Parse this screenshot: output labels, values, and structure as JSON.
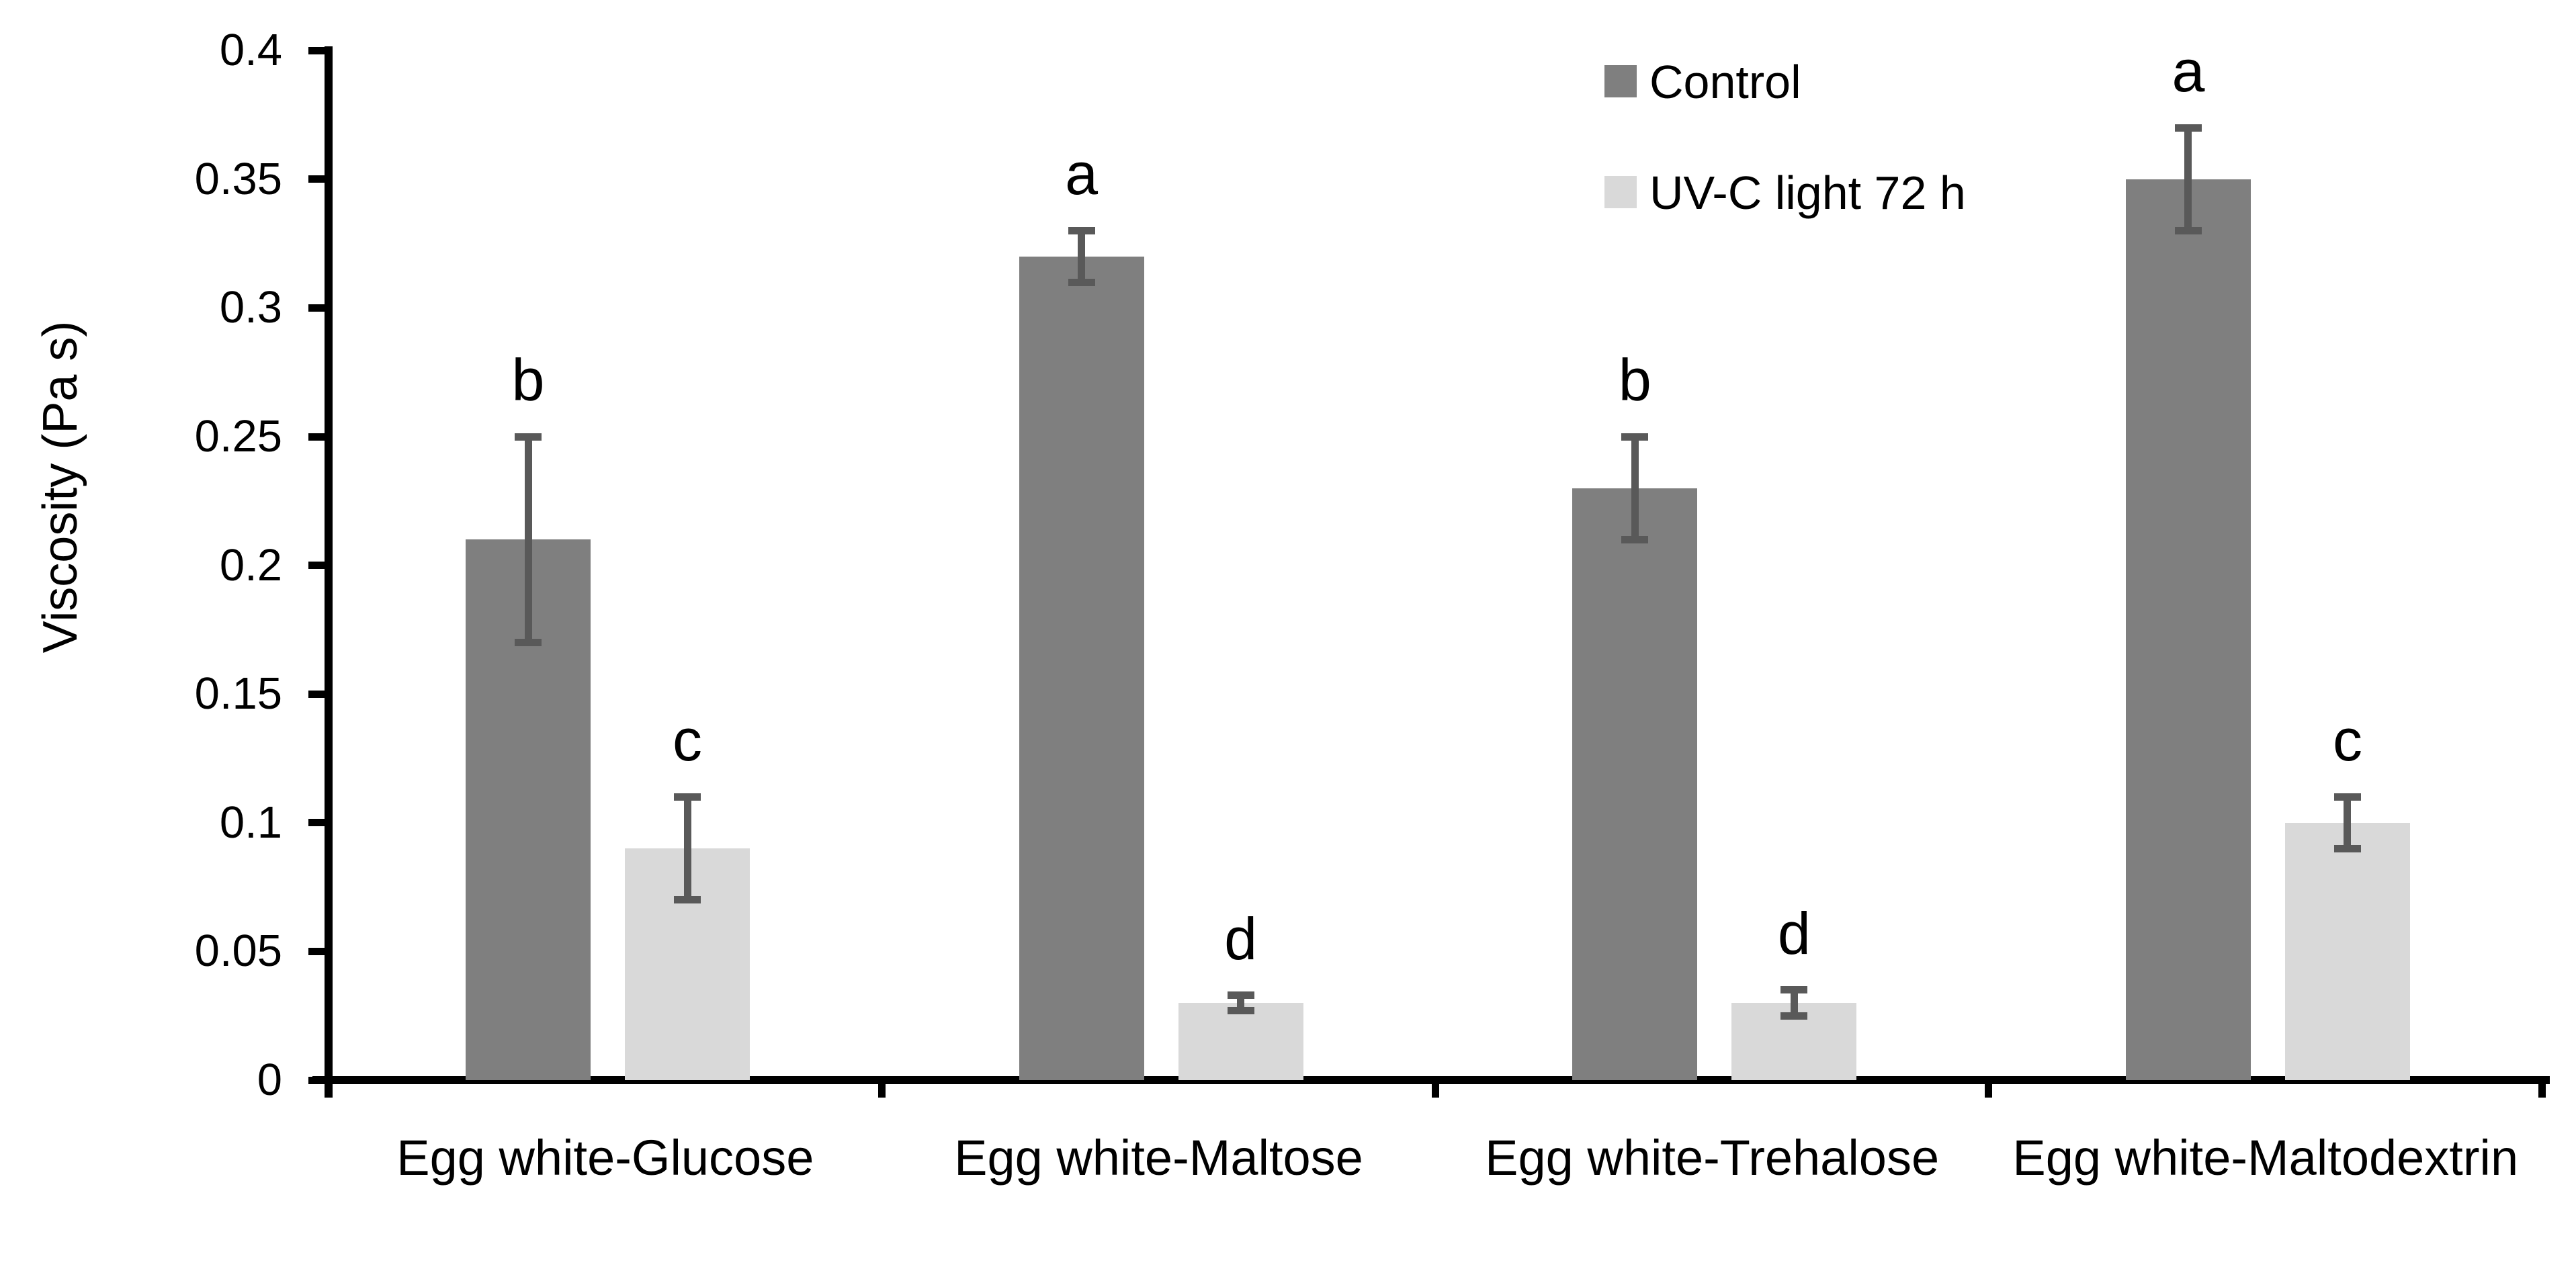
{
  "chart_data": {
    "type": "bar",
    "title": "",
    "xlabel": "",
    "ylabel": "Viscosity (Pa s)",
    "ylim": [
      0,
      0.4
    ],
    "ytick_step": 0.05,
    "ytick_labels": [
      "0",
      "0.05",
      "0.1",
      "0.15",
      "0.2",
      "0.25",
      "0.3",
      "0.35",
      "0.4"
    ],
    "categories": [
      "Egg white-Glucose",
      "Egg white-Maltose",
      "Egg white-Trehalose",
      "Egg white-Maltodextrin"
    ],
    "series": [
      {
        "name": "Control",
        "color": "#7f7f7f",
        "values": [
          0.21,
          0.32,
          0.23,
          0.35
        ],
        "errors_plus": [
          0.04,
          0.01,
          0.02,
          0.02
        ],
        "errors_minus": [
          0.04,
          0.01,
          0.02,
          0.02
        ],
        "letters": [
          "b",
          "a",
          "b",
          "a"
        ]
      },
      {
        "name": "UV-C light 72 h",
        "color": "#d9d9d9",
        "values": [
          0.09,
          0.03,
          0.03,
          0.1
        ],
        "errors_plus": [
          0.02,
          0.003,
          0.005,
          0.01
        ],
        "errors_minus": [
          0.02,
          0.003,
          0.005,
          0.01
        ],
        "letters": [
          "c",
          "d",
          "d",
          "c"
        ]
      }
    ],
    "error_bar_color": "#595959",
    "axis_color": "#000000",
    "text_color": "#000000",
    "background_color": "#ffffff",
    "grid": false,
    "legend_position": "top-right"
  }
}
